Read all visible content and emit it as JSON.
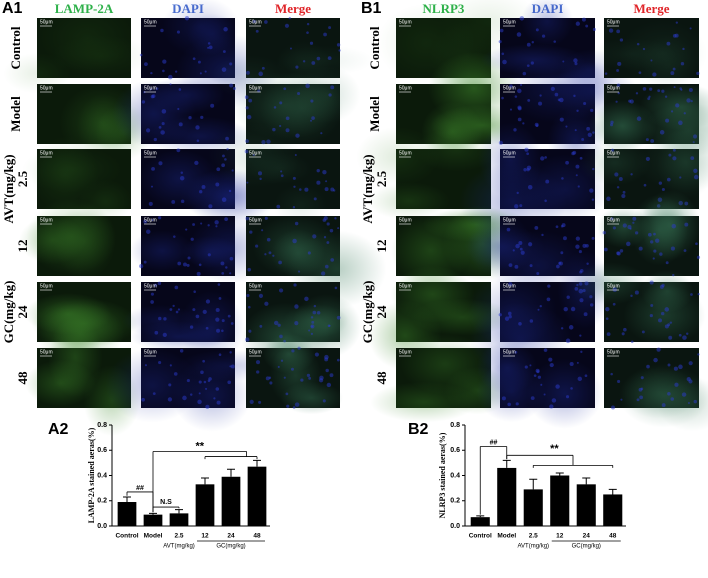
{
  "panels": [
    {
      "label": "A1",
      "columns": [
        {
          "text": "LAMP-2A",
          "color": "#2eb14a"
        },
        {
          "text": "DAPI",
          "color": "#4a6fd0"
        },
        {
          "text": "Merge",
          "color": "#e0262a"
        }
      ],
      "rows": [
        "Control",
        "Model",
        "2.5",
        "12",
        "24",
        "48"
      ],
      "group_labels": [
        "AVT(mg/kg)",
        "GC(mg/kg)"
      ]
    },
    {
      "label": "B1",
      "columns": [
        {
          "text": "NLRP3",
          "color": "#2eb14a"
        },
        {
          "text": "DAPI",
          "color": "#4a6fd0"
        },
        {
          "text": "Merge",
          "color": "#e0262a"
        }
      ],
      "rows": [
        "Control",
        "Model",
        "2.5",
        "12",
        "24",
        "48"
      ],
      "group_labels": [
        "AVT(mg/kg)",
        "GC(mg/kg)"
      ]
    }
  ],
  "scale_bar": "50μm",
  "chart_data": [
    {
      "type": "bar",
      "label": "A2",
      "y_label": "LAMP-2A stained aeras(%)",
      "categories": [
        "Control",
        "Model",
        "2.5",
        "12",
        "24",
        "48"
      ],
      "values": [
        0.19,
        0.09,
        0.1,
        0.33,
        0.39,
        0.47
      ],
      "errors": [
        0.04,
        0.01,
        0.03,
        0.05,
        0.06,
        0.05
      ],
      "color": "#000000",
      "ylim": [
        0,
        0.8
      ],
      "yticks": [
        {
          "value": 0,
          "label": "0.0"
        },
        0.2,
        0.4,
        0.6,
        0.8
      ],
      "group_labels": [
        "AVT(mg/kg)",
        "GC(mg/kg)"
      ],
      "annotations": [
        "##",
        "N.S",
        "**"
      ]
    },
    {
      "type": "bar",
      "label": "B2",
      "y_label": "NLRP3 stained aeras(%)",
      "categories": [
        "Control",
        "Model",
        "2.5",
        "12",
        "24",
        "48"
      ],
      "values": [
        0.07,
        0.46,
        0.29,
        0.4,
        0.33,
        0.25
      ],
      "errors": [
        0.01,
        0.06,
        0.08,
        0.02,
        0.05,
        0.04
      ],
      "color": "#000000",
      "ylim": [
        0,
        0.8
      ],
      "yticks": [
        {
          "value": 0,
          "label": "0.0"
        },
        0.2,
        0.4,
        0.6,
        0.8
      ],
      "group_labels": [
        "AVT(mg/kg)",
        "GC(mg/kg)"
      ],
      "annotations": [
        "##",
        "**"
      ]
    }
  ]
}
